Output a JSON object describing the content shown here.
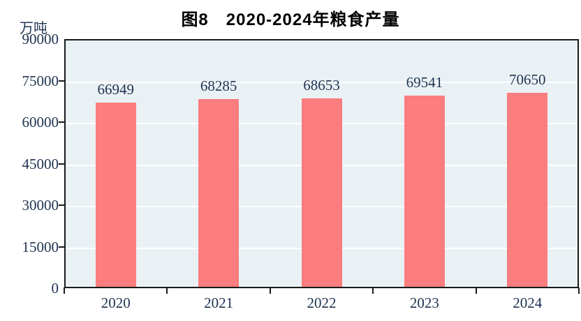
{
  "title": "图8　2020-2024年粮食产量",
  "unit_label": "万吨",
  "colors": {
    "bar": "#FB7D7D",
    "plot_background": "#EAF1F5",
    "axis_text": "#1F3350",
    "gridline": "#FFFFFF",
    "axis_line": "#1A1A1A",
    "title_text": "#000000"
  },
  "chart_data": {
    "type": "bar",
    "title": "图8　2020-2024年粮食产量",
    "unit": "万吨",
    "categories": [
      "2020",
      "2021",
      "2022",
      "2023",
      "2024"
    ],
    "values": [
      66949,
      68285,
      68653,
      69541,
      70650
    ],
    "data_labels_shown": true,
    "ylim": [
      0,
      90000
    ],
    "yticks": [
      0,
      15000,
      30000,
      45000,
      60000,
      75000,
      90000
    ],
    "xlabel": "",
    "ylabel": "万吨",
    "grid": "horizontal-white",
    "legend_position": "none",
    "plot_border": true
  }
}
